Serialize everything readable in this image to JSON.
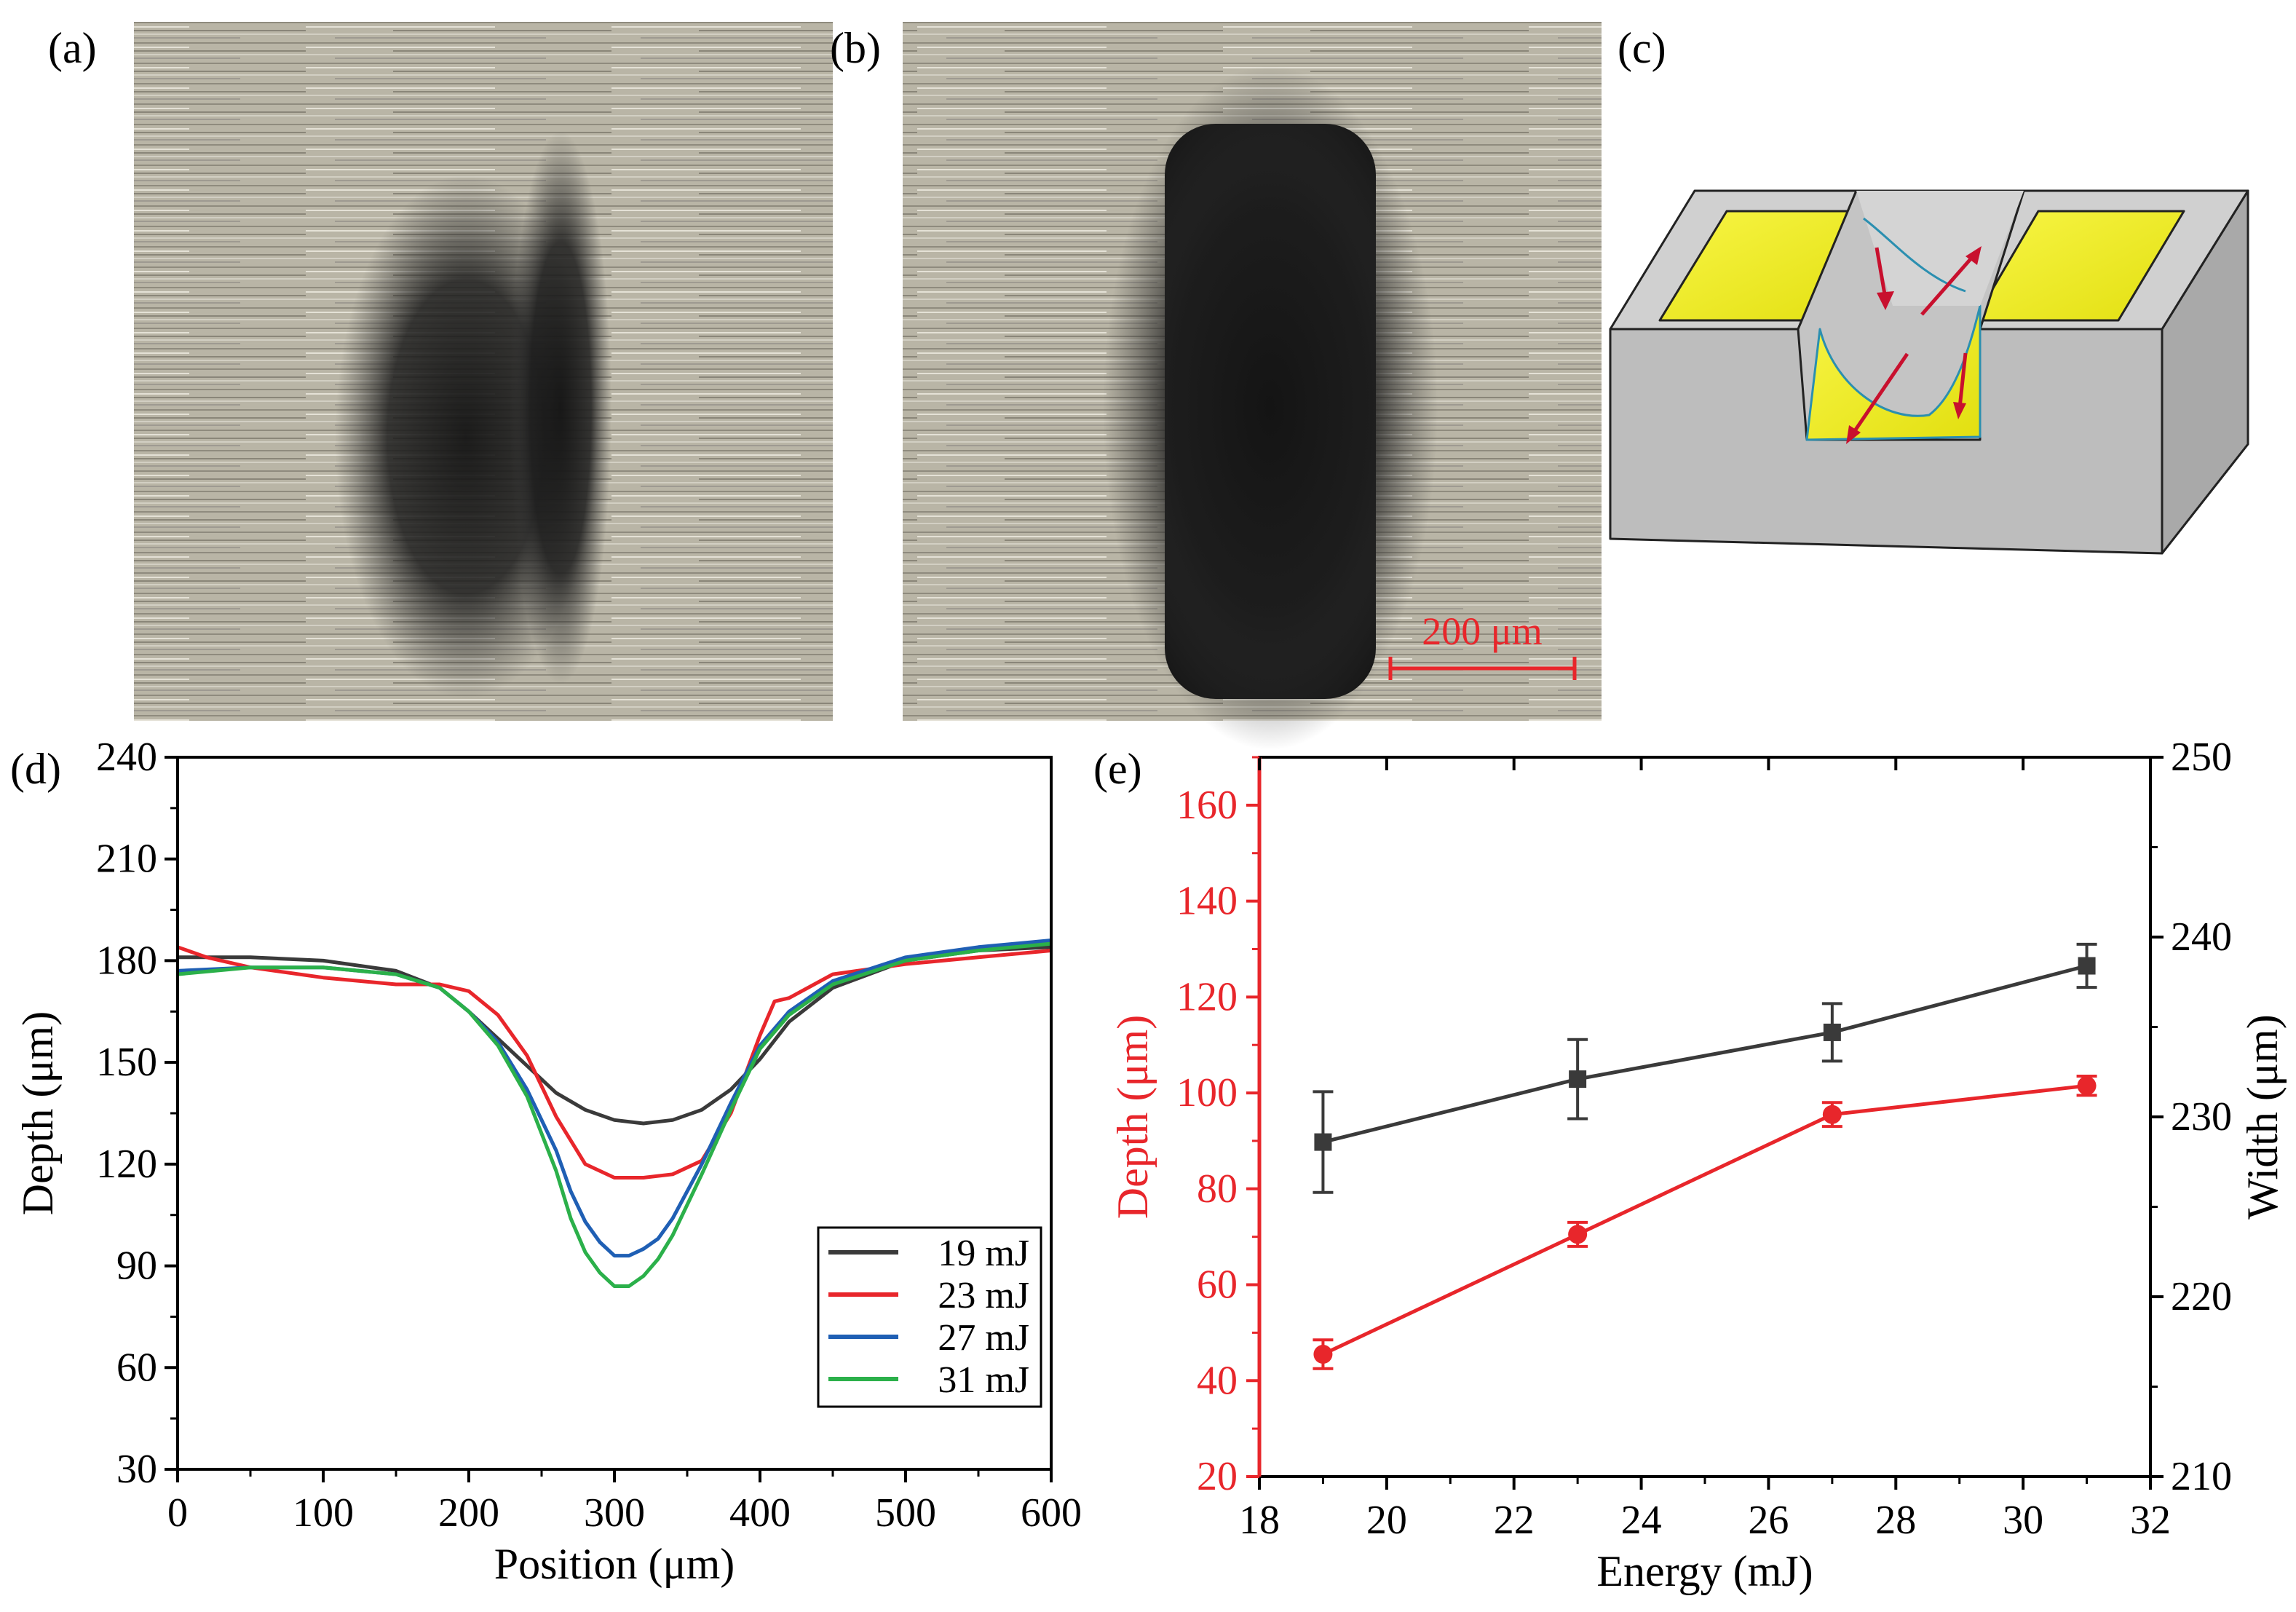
{
  "panels": {
    "a": {
      "label": "(a)"
    },
    "b": {
      "label": "(b)",
      "scale_bar": "200 μm"
    },
    "c": {
      "label": "(c)"
    },
    "d": {
      "label": "(d)"
    },
    "e": {
      "label": "(e)"
    }
  },
  "colors": {
    "black": "#3a3a3a",
    "red": "#e8262b",
    "blue": "#1f5fb4",
    "green": "#2bb04a",
    "axis": "#000000",
    "yellow": "#f3f01e",
    "gray_block": "#c8c8c8"
  },
  "chart_data": [
    {
      "id": "d",
      "type": "line",
      "title": "",
      "xlabel": "Position (μm)",
      "ylabel": "Depth (μm)",
      "xlim": [
        0,
        600
      ],
      "ylim": [
        30,
        240
      ],
      "xticks": [
        "0",
        "100",
        "200",
        "300",
        "400",
        "500",
        "600"
      ],
      "yticks": [
        "30",
        "60",
        "90",
        "120",
        "150",
        "180",
        "210",
        "240"
      ],
      "legend_position": "lower-right",
      "series": [
        {
          "name": "19 mJ",
          "color": "#3a3a3a",
          "x": [
            0,
            50,
            100,
            150,
            180,
            200,
            220,
            240,
            260,
            280,
            300,
            320,
            340,
            360,
            380,
            400,
            420,
            450,
            500,
            550,
            600
          ],
          "y": [
            181,
            181,
            180,
            177,
            172,
            165,
            157,
            149,
            141,
            136,
            133,
            132,
            133,
            136,
            142,
            151,
            162,
            172,
            180,
            183,
            184
          ]
        },
        {
          "name": "23 mJ",
          "color": "#e8262b",
          "x": [
            0,
            20,
            50,
            100,
            150,
            180,
            200,
            220,
            240,
            260,
            280,
            300,
            320,
            340,
            360,
            380,
            400,
            410,
            420,
            450,
            500,
            550,
            600
          ],
          "y": [
            184,
            181,
            178,
            175,
            173,
            173,
            171,
            164,
            152,
            134,
            120,
            116,
            116,
            117,
            121,
            135,
            158,
            168,
            169,
            176,
            179,
            181,
            183
          ]
        },
        {
          "name": "27 mJ",
          "color": "#1f5fb4",
          "x": [
            0,
            50,
            100,
            150,
            180,
            200,
            220,
            240,
            260,
            270,
            280,
            290,
            300,
            310,
            320,
            330,
            340,
            360,
            380,
            400,
            420,
            450,
            500,
            550,
            600
          ],
          "y": [
            177,
            178,
            178,
            176,
            172,
            165,
            156,
            142,
            124,
            112,
            103,
            97,
            93,
            93,
            95,
            98,
            104,
            120,
            138,
            155,
            165,
            174,
            181,
            184,
            186
          ]
        },
        {
          "name": "31 mJ",
          "color": "#2bb04a",
          "x": [
            0,
            50,
            100,
            150,
            180,
            200,
            220,
            240,
            260,
            270,
            280,
            290,
            300,
            310,
            320,
            330,
            340,
            360,
            380,
            400,
            420,
            450,
            500,
            550,
            600
          ],
          "y": [
            176,
            178,
            178,
            176,
            172,
            165,
            155,
            140,
            118,
            104,
            94,
            88,
            84,
            84,
            87,
            92,
            99,
            117,
            136,
            154,
            164,
            173,
            180,
            183,
            185
          ]
        }
      ]
    },
    {
      "id": "e",
      "type": "line",
      "title": "",
      "xlabel": "Energy (mJ)",
      "ylabel": "Depth (μm)",
      "ylabel_right": "Width (μm)",
      "xlim": [
        18,
        32
      ],
      "ylim": [
        20,
        170
      ],
      "ylim_right": [
        210,
        250
      ],
      "xticks": [
        "18",
        "20",
        "22",
        "24",
        "26",
        "28",
        "30",
        "32"
      ],
      "yticks": [
        "20",
        "40",
        "60",
        "80",
        "100",
        "120",
        "140",
        "160"
      ],
      "yticks_right": [
        "210",
        "220",
        "230",
        "240",
        "250"
      ],
      "series": [
        {
          "name": "Depth",
          "axis": "left",
          "color": "#e8262b",
          "marker": "circle",
          "x": [
            19,
            23,
            27,
            31
          ],
          "y": [
            45.5,
            70.5,
            95.5,
            101.5
          ],
          "err": [
            3,
            2.5,
            2.5,
            2
          ]
        },
        {
          "name": "Width",
          "axis": "right",
          "color": "#3a3a3a",
          "marker": "square",
          "x": [
            19,
            23,
            27,
            31
          ],
          "y": [
            228.6,
            232.1,
            234.7,
            238.4
          ],
          "err": [
            2.8,
            2.2,
            1.6,
            1.2
          ]
        }
      ]
    }
  ]
}
